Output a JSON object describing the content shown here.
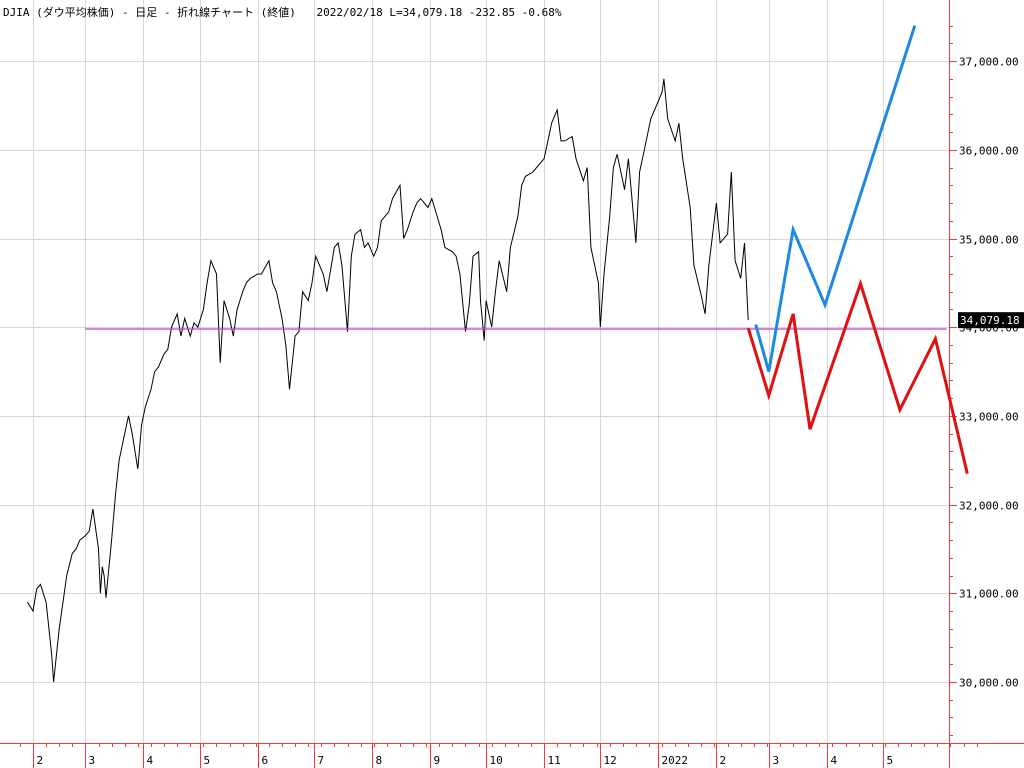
{
  "header": {
    "title": "DJIA (ダウ平均株価) - 日足 - 折れ線チャート (終値)",
    "date": "2022/02/18",
    "last": "L=34,079.18",
    "change": "-232.85",
    "change_pct": "-0.68%"
  },
  "last_value_badge": "34,079.18",
  "colors": {
    "price_line": "#000000",
    "support_line": "#cc33cc",
    "scenario_up": "#1e88e5",
    "scenario_down": "#e01010",
    "axis": "#ff3333",
    "grid": "#d8d8d8",
    "badge_bg": "#000000",
    "badge_text": "#ffffff"
  },
  "chart_data": {
    "type": "line",
    "y_tick_labels": [
      "30,000.00",
      "31,000.00",
      "32,000.00",
      "33,000.00",
      "34,000.00",
      "35,000.00",
      "36,000.00",
      "37,000.00"
    ],
    "y_ticks": [
      30000,
      31000,
      32000,
      33000,
      34000,
      35000,
      36000,
      37000
    ],
    "x_tick_labels": [
      "2",
      "3",
      "4",
      "5",
      "6",
      "7",
      "8",
      "9",
      "10",
      "11",
      "12",
      "2022",
      "2",
      "3",
      "4",
      "5"
    ],
    "x_tick_dates": [
      "2021-02",
      "2021-03",
      "2021-04",
      "2021-05",
      "2021-06",
      "2021-07",
      "2021-08",
      "2021-09",
      "2021-10",
      "2021-11",
      "2021-12",
      "2022-01",
      "2022-02",
      "2022-03",
      "2022-04",
      "2022-05"
    ],
    "grid": true,
    "series": [
      {
        "role": "price",
        "style": "line",
        "points": [
          [
            "2021-01-29",
            30900
          ],
          [
            "2021-02-01",
            30800
          ],
          [
            "2021-02-03",
            31050
          ],
          [
            "2021-02-05",
            31100
          ],
          [
            "2021-02-08",
            30900
          ],
          [
            "2021-02-10",
            30500
          ],
          [
            "2021-02-11",
            30300
          ],
          [
            "2021-02-12",
            30000
          ],
          [
            "2021-02-15",
            30600
          ],
          [
            "2021-02-17",
            30900
          ],
          [
            "2021-02-19",
            31200
          ],
          [
            "2021-02-22",
            31450
          ],
          [
            "2021-02-24",
            31500
          ],
          [
            "2021-02-26",
            31600
          ],
          [
            "2021-03-01",
            31650
          ],
          [
            "2021-03-03",
            31700
          ],
          [
            "2021-03-05",
            31950
          ],
          [
            "2021-03-08",
            31500
          ],
          [
            "2021-03-09",
            31000
          ],
          [
            "2021-03-10",
            31300
          ],
          [
            "2021-03-11",
            31200
          ],
          [
            "2021-03-12",
            30950
          ],
          [
            "2021-03-15",
            31600
          ],
          [
            "2021-03-17",
            32100
          ],
          [
            "2021-03-19",
            32500
          ],
          [
            "2021-03-22",
            32800
          ],
          [
            "2021-03-24",
            33000
          ],
          [
            "2021-03-26",
            32800
          ],
          [
            "2021-03-29",
            32400
          ],
          [
            "2021-03-31",
            32900
          ],
          [
            "2021-04-02",
            33100
          ],
          [
            "2021-04-05",
            33300
          ],
          [
            "2021-04-07",
            33500
          ],
          [
            "2021-04-09",
            33550
          ],
          [
            "2021-04-12",
            33700
          ],
          [
            "2021-04-14",
            33750
          ],
          [
            "2021-04-16",
            34000
          ],
          [
            "2021-04-19",
            34150
          ],
          [
            "2021-04-21",
            33900
          ],
          [
            "2021-04-23",
            34100
          ],
          [
            "2021-04-26",
            33900
          ],
          [
            "2021-04-28",
            34050
          ],
          [
            "2021-04-30",
            34000
          ],
          [
            "2021-05-03",
            34200
          ],
          [
            "2021-05-05",
            34500
          ],
          [
            "2021-05-07",
            34750
          ],
          [
            "2021-05-10",
            34600
          ],
          [
            "2021-05-12",
            33600
          ],
          [
            "2021-05-14",
            34300
          ],
          [
            "2021-05-17",
            34100
          ],
          [
            "2021-05-19",
            33900
          ],
          [
            "2021-05-21",
            34200
          ],
          [
            "2021-05-24",
            34400
          ],
          [
            "2021-05-26",
            34500
          ],
          [
            "2021-05-28",
            34550
          ],
          [
            "2021-06-01",
            34600
          ],
          [
            "2021-06-03",
            34600
          ],
          [
            "2021-06-07",
            34750
          ],
          [
            "2021-06-09",
            34500
          ],
          [
            "2021-06-11",
            34400
          ],
          [
            "2021-06-14",
            34100
          ],
          [
            "2021-06-16",
            33800
          ],
          [
            "2021-06-18",
            33300
          ],
          [
            "2021-06-21",
            33900
          ],
          [
            "2021-06-23",
            33950
          ],
          [
            "2021-06-25",
            34400
          ],
          [
            "2021-06-28",
            34300
          ],
          [
            "2021-06-30",
            34500
          ],
          [
            "2021-07-02",
            34800
          ],
          [
            "2021-07-06",
            34600
          ],
          [
            "2021-07-08",
            34400
          ],
          [
            "2021-07-12",
            34900
          ],
          [
            "2021-07-14",
            34950
          ],
          [
            "2021-07-16",
            34700
          ],
          [
            "2021-07-19",
            33950
          ],
          [
            "2021-07-21",
            34800
          ],
          [
            "2021-07-23",
            35050
          ],
          [
            "2021-07-26",
            35100
          ],
          [
            "2021-07-28",
            34900
          ],
          [
            "2021-07-30",
            34950
          ],
          [
            "2021-08-02",
            34800
          ],
          [
            "2021-08-04",
            34900
          ],
          [
            "2021-08-06",
            35200
          ],
          [
            "2021-08-10",
            35300
          ],
          [
            "2021-08-12",
            35450
          ],
          [
            "2021-08-16",
            35600
          ],
          [
            "2021-08-18",
            35000
          ],
          [
            "2021-08-20",
            35100
          ],
          [
            "2021-08-23",
            35300
          ],
          [
            "2021-08-25",
            35400
          ],
          [
            "2021-08-27",
            35450
          ],
          [
            "2021-08-31",
            35350
          ],
          [
            "2021-09-02",
            35450
          ],
          [
            "2021-09-07",
            35100
          ],
          [
            "2021-09-09",
            34900
          ],
          [
            "2021-09-13",
            34850
          ],
          [
            "2021-09-15",
            34800
          ],
          [
            "2021-09-17",
            34600
          ],
          [
            "2021-09-20",
            33950
          ],
          [
            "2021-09-22",
            34250
          ],
          [
            "2021-09-24",
            34800
          ],
          [
            "2021-09-27",
            34850
          ],
          [
            "2021-09-28",
            34300
          ],
          [
            "2021-09-30",
            33850
          ],
          [
            "2021-10-01",
            34300
          ],
          [
            "2021-10-04",
            34000
          ],
          [
            "2021-10-06",
            34400
          ],
          [
            "2021-10-08",
            34750
          ],
          [
            "2021-10-12",
            34400
          ],
          [
            "2021-10-14",
            34900
          ],
          [
            "2021-10-18",
            35250
          ],
          [
            "2021-10-20",
            35600
          ],
          [
            "2021-10-22",
            35700
          ],
          [
            "2021-10-26",
            35750
          ],
          [
            "2021-10-28",
            35800
          ],
          [
            "2021-11-01",
            35900
          ],
          [
            "2021-11-03",
            36100
          ],
          [
            "2021-11-05",
            36300
          ],
          [
            "2021-11-08",
            36450
          ],
          [
            "2021-11-10",
            36100
          ],
          [
            "2021-11-12",
            36100
          ],
          [
            "2021-11-16",
            36150
          ],
          [
            "2021-11-18",
            35900
          ],
          [
            "2021-11-22",
            35650
          ],
          [
            "2021-11-24",
            35800
          ],
          [
            "2021-11-26",
            34900
          ],
          [
            "2021-11-30",
            34500
          ],
          [
            "2021-12-01",
            34000
          ],
          [
            "2021-12-03",
            34600
          ],
          [
            "2021-12-06",
            35250
          ],
          [
            "2021-12-08",
            35800
          ],
          [
            "2021-12-10",
            35950
          ],
          [
            "2021-12-14",
            35550
          ],
          [
            "2021-12-16",
            35900
          ],
          [
            "2021-12-20",
            34950
          ],
          [
            "2021-12-22",
            35750
          ],
          [
            "2021-12-24",
            35950
          ],
          [
            "2021-12-28",
            36350
          ],
          [
            "2021-12-30",
            36450
          ],
          [
            "2022-01-03",
            36650
          ],
          [
            "2022-01-04",
            36800
          ],
          [
            "2022-01-06",
            36350
          ],
          [
            "2022-01-10",
            36100
          ],
          [
            "2022-01-12",
            36300
          ],
          [
            "2022-01-14",
            35900
          ],
          [
            "2022-01-18",
            35350
          ],
          [
            "2022-01-20",
            34700
          ],
          [
            "2022-01-24",
            34350
          ],
          [
            "2022-01-26",
            34150
          ],
          [
            "2022-01-28",
            34700
          ],
          [
            "2022-02-01",
            35400
          ],
          [
            "2022-02-03",
            34950
          ],
          [
            "2022-02-07",
            35050
          ],
          [
            "2022-02-09",
            35750
          ],
          [
            "2022-02-11",
            34750
          ],
          [
            "2022-02-14",
            34550
          ],
          [
            "2022-02-16",
            34950
          ],
          [
            "2022-02-18",
            34079.18
          ]
        ]
      },
      {
        "role": "support",
        "style": "horizontal",
        "y": 33980,
        "from": "2021-03-01",
        "to": "2022-06-04"
      },
      {
        "role": "scenario_up",
        "style": "line",
        "points": [
          [
            "2022-02-22",
            34030
          ],
          [
            "2022-03-01",
            33500
          ],
          [
            "2022-03-14",
            35100
          ],
          [
            "2022-03-31",
            34250
          ],
          [
            "2022-05-18",
            37400
          ]
        ]
      },
      {
        "role": "scenario_down",
        "style": "line",
        "points": [
          [
            "2022-02-18",
            33990
          ],
          [
            "2022-03-01",
            33230
          ],
          [
            "2022-03-14",
            34150
          ],
          [
            "2022-03-23",
            32850
          ],
          [
            "2022-04-19",
            34490
          ],
          [
            "2022-05-10",
            33070
          ],
          [
            "2022-05-29",
            33870
          ],
          [
            "2022-06-15",
            32350
          ]
        ]
      }
    ]
  }
}
